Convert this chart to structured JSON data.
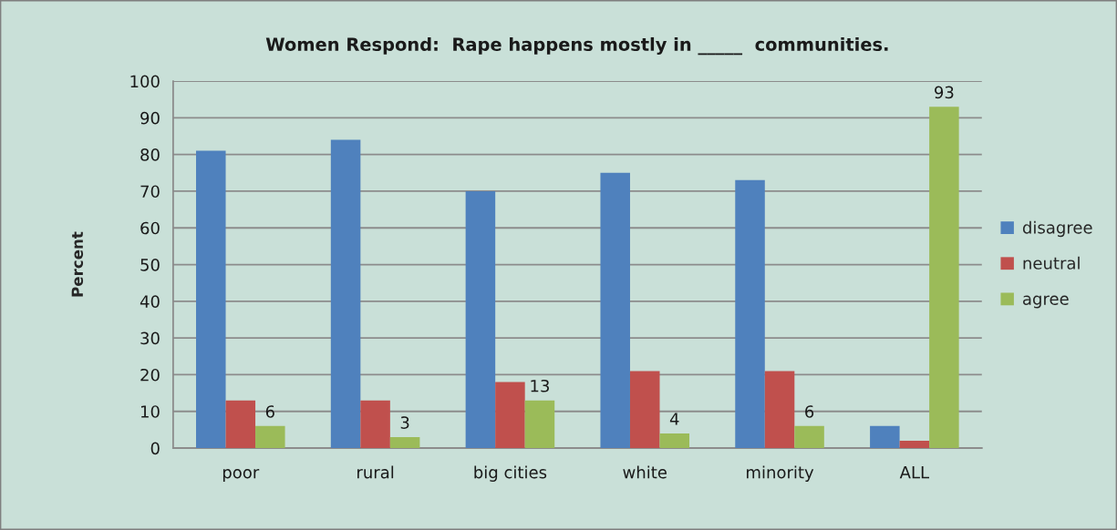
{
  "chart_data": {
    "type": "bar",
    "title": "Women Respond:  Rape happens mostly in _____  communities.",
    "ylabel": "Percent",
    "categories": [
      "poor",
      "rural",
      "big cities",
      "white",
      "minority",
      "ALL"
    ],
    "series": [
      {
        "name": "disagree",
        "color": "#4f81bd",
        "values": [
          81,
          84,
          70,
          75,
          73,
          6
        ]
      },
      {
        "name": "neutral",
        "color": "#c0504d",
        "values": [
          13,
          13,
          18,
          21,
          21,
          2
        ]
      },
      {
        "name": "agree",
        "color": "#9bbb59",
        "values": [
          6,
          3,
          13,
          4,
          6,
          93
        ],
        "value_labels": [
          "6",
          "3",
          "13",
          "4",
          "6",
          "93"
        ]
      }
    ],
    "ylim": [
      0,
      100
    ],
    "yticks": [
      0,
      10,
      20,
      30,
      40,
      50,
      60,
      70,
      80,
      90,
      100
    ],
    "grid": "y",
    "legend": "right"
  }
}
